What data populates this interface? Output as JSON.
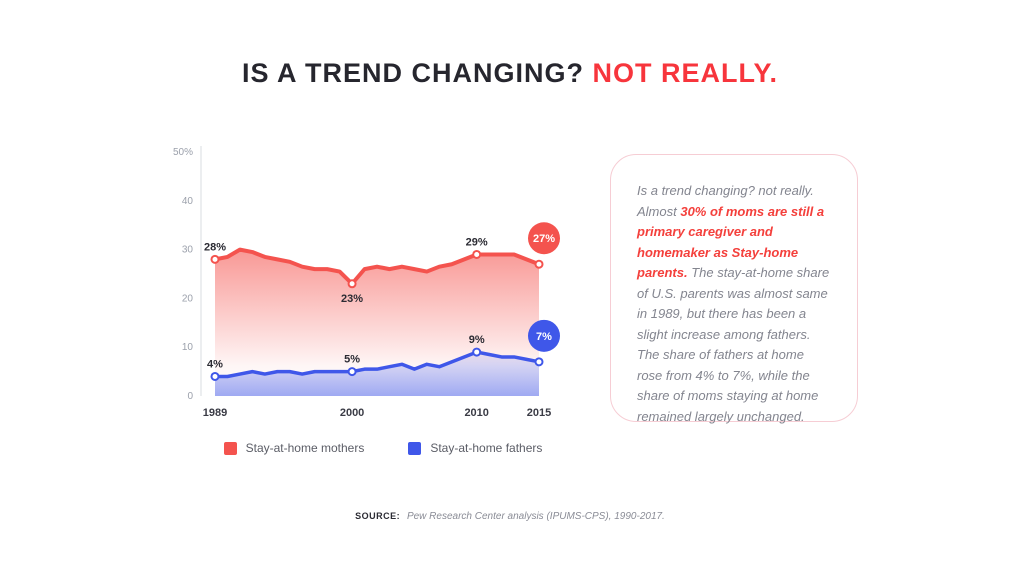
{
  "colors": {
    "title_dark": "#26262e",
    "title_red": "#f7353c",
    "series_red": "#f4534e",
    "series_blue": "#3f57e9",
    "card_border": "#f6cdd4",
    "card_text": "#83858f",
    "card_emphasis": "#f4403c",
    "axis_text": "#9ba0ab",
    "label_dark": "#2b2b33"
  },
  "title": {
    "main": "IS A TREND CHANGING?",
    "highlight": "NOT REALLY."
  },
  "chart_data": {
    "type": "area",
    "x": [
      1989,
      1990,
      1991,
      1992,
      1993,
      1994,
      1995,
      1996,
      1997,
      1998,
      1999,
      2000,
      2001,
      2002,
      2003,
      2004,
      2005,
      2006,
      2007,
      2008,
      2009,
      2010,
      2011,
      2012,
      2013,
      2014,
      2015
    ],
    "series": [
      {
        "name": "Stay-at-home mothers",
        "color": "#f4534e",
        "values": [
          28,
          28.5,
          30,
          29.5,
          28.5,
          28,
          27.5,
          26.5,
          26,
          26,
          25.5,
          23,
          26,
          26.5,
          26,
          26.5,
          26,
          25.5,
          26.5,
          27,
          28,
          29,
          29,
          29,
          29,
          28,
          27
        ]
      },
      {
        "name": "Stay-at-home fathers",
        "color": "#3f57e9",
        "values": [
          4,
          4,
          4.5,
          5,
          4.5,
          5,
          5,
          4.5,
          5,
          5,
          5,
          5,
          5.5,
          5.5,
          6,
          6.5,
          5.5,
          6.5,
          6,
          7,
          8,
          9,
          8.5,
          8,
          8,
          7.5,
          7
        ]
      }
    ],
    "ylim": [
      0,
      50
    ],
    "yticks": [
      {
        "v": 50,
        "label": "50%"
      },
      {
        "v": 40,
        "label": "40"
      },
      {
        "v": 30,
        "label": "30"
      },
      {
        "v": 20,
        "label": "20"
      },
      {
        "v": 10,
        "label": "10"
      },
      {
        "v": 0,
        "label": "0"
      }
    ],
    "xticks": [
      {
        "v": 1989,
        "label": "1989"
      },
      {
        "v": 2000,
        "label": "2000"
      },
      {
        "v": 2010,
        "label": "2010"
      },
      {
        "v": 2015,
        "label": "2015"
      }
    ],
    "annotations": [
      {
        "series": 0,
        "year": 1989,
        "label": "28%",
        "position": "above",
        "badge": false
      },
      {
        "series": 0,
        "year": 2000,
        "label": "23%",
        "position": "below",
        "badge": false
      },
      {
        "series": 0,
        "year": 2010,
        "label": "29%",
        "position": "above",
        "badge": false
      },
      {
        "series": 0,
        "year": 2015,
        "label": "27%",
        "badge": true
      },
      {
        "series": 1,
        "year": 1989,
        "label": "4%",
        "position": "above",
        "badge": false
      },
      {
        "series": 1,
        "year": 2000,
        "label": "5%",
        "position": "above",
        "badge": false
      },
      {
        "series": 1,
        "year": 2010,
        "label": "9%",
        "position": "above",
        "badge": false
      },
      {
        "series": 1,
        "year": 2015,
        "label": "7%",
        "badge": true
      }
    ],
    "grid": false,
    "legend_position": "bottom"
  },
  "legend": {
    "items": [
      {
        "label": "Stay-at-home mothers",
        "color": "#f4534e"
      },
      {
        "label": "Stay-at-home fathers",
        "color": "#3f57e9"
      }
    ]
  },
  "card": {
    "segments": [
      {
        "text": "Is a trend changing? not really. Almost ",
        "em": false
      },
      {
        "text": "30% of moms are still a primary caregiver and homemaker as Stay-home parents.",
        "em": true
      },
      {
        "text": " The stay-at-home share of U.S. parents was almost same in 1989, but there has been a slight increase among fathers. The share of fathers at home rose from 4% to 7%, while the share of moms staying at home remained largely unchanged.",
        "em": false
      }
    ]
  },
  "source": {
    "label": "SOURCE:",
    "text": "Pew Research Center analysis (IPUMS-CPS), 1990-2017."
  }
}
